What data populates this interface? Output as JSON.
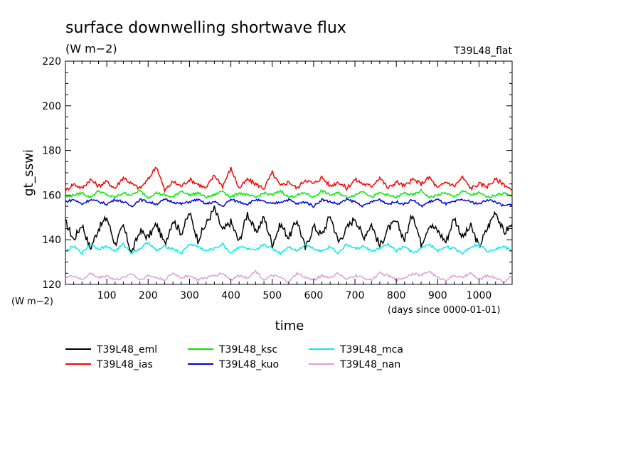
{
  "chart_data": {
    "type": "line",
    "title": "surface downwelling shortwave flux",
    "units": "(W m−2)",
    "experiment": "T39L48_flat",
    "ylabel": "gt_sswi",
    "xlabel": "time",
    "x_units": "(days since 0000-01-01)",
    "y_units_label": "(W m−2)",
    "xlim": [
      0,
      1080
    ],
    "ylim": [
      120,
      220
    ],
    "x_ticks": [
      100,
      200,
      300,
      400,
      500,
      600,
      700,
      800,
      900,
      1000
    ],
    "y_ticks": [
      120,
      140,
      160,
      180,
      200,
      220
    ],
    "x": [
      0,
      20,
      40,
      60,
      80,
      100,
      120,
      140,
      160,
      180,
      200,
      220,
      240,
      260,
      280,
      300,
      320,
      340,
      360,
      380,
      400,
      420,
      440,
      460,
      480,
      500,
      520,
      540,
      560,
      580,
      600,
      620,
      640,
      660,
      680,
      700,
      720,
      740,
      760,
      780,
      800,
      820,
      840,
      860,
      880,
      900,
      920,
      940,
      960,
      980,
      1000,
      1020,
      1040,
      1060,
      1080
    ],
    "series": [
      {
        "name": "T39L48_eml",
        "color": "#000000",
        "values": [
          148,
          140,
          147,
          136,
          145,
          150,
          138,
          146,
          134,
          144,
          141,
          147,
          138,
          149,
          143,
          152,
          140,
          147,
          154,
          144,
          148,
          139,
          152,
          143,
          150,
          138,
          147,
          141,
          149,
          136,
          146,
          142,
          151,
          139,
          145,
          150,
          141,
          147,
          137,
          145,
          148,
          140,
          152,
          138,
          147,
          144,
          139,
          150,
          141,
          146,
          137,
          145,
          153,
          143,
          147
        ]
      },
      {
        "name": "T39L48_ias",
        "color": "#ff0000",
        "values": [
          162,
          165,
          163,
          167,
          164,
          166,
          163,
          168,
          165,
          163,
          167,
          173,
          162,
          166,
          164,
          167,
          165,
          163,
          169,
          164,
          172,
          163,
          167,
          165,
          163,
          170,
          164,
          166,
          163,
          167,
          165,
          168,
          164,
          166,
          163,
          167,
          165,
          164,
          168,
          163,
          166,
          164,
          167,
          165,
          168,
          163,
          166,
          164,
          168,
          163,
          165,
          164,
          167,
          165,
          162
        ]
      },
      {
        "name": "T39L48_ksc",
        "color": "#00ee00",
        "values": [
          159,
          160,
          161,
          159,
          162,
          160,
          159,
          161,
          160,
          162,
          159,
          161,
          160,
          159,
          162,
          160,
          161,
          159,
          160,
          162,
          159,
          161,
          160,
          159,
          161,
          160,
          162,
          159,
          160,
          161,
          159,
          162,
          160,
          161,
          159,
          160,
          162,
          159,
          161,
          160,
          159,
          161,
          160,
          162,
          159,
          160,
          161,
          159,
          162,
          160,
          161,
          159,
          160,
          161,
          159
        ]
      },
      {
        "name": "T39L48_kuo",
        "color": "#0000dd",
        "values": [
          157,
          158,
          156,
          158,
          157,
          156,
          158,
          157,
          155,
          158,
          157,
          156,
          158,
          157,
          156,
          157,
          158,
          156,
          157,
          155,
          158,
          157,
          156,
          158,
          157,
          156,
          157,
          158,
          156,
          157,
          155,
          158,
          157,
          156,
          158,
          157,
          155,
          157,
          158,
          156,
          157,
          156,
          158,
          155,
          157,
          158,
          156,
          157,
          158,
          157,
          156,
          158,
          157,
          155,
          156
        ]
      },
      {
        "name": "T39L48_mca",
        "color": "#00eeee",
        "values": [
          135,
          137,
          134,
          138,
          136,
          137,
          135,
          138,
          134,
          136,
          139,
          135,
          137,
          136,
          134,
          138,
          137,
          135,
          136,
          138,
          134,
          137,
          136,
          135,
          138,
          136,
          134,
          137,
          135,
          138,
          136,
          135,
          137,
          134,
          138,
          136,
          137,
          135,
          136,
          138,
          135,
          137,
          134,
          136,
          138,
          135,
          137,
          136,
          134,
          137,
          138,
          135,
          136,
          137,
          135
        ]
      },
      {
        "name": "T39L48_nan",
        "color": "#dda0dd",
        "values": [
          123,
          124,
          122,
          125,
          123,
          124,
          122,
          123,
          125,
          122,
          124,
          123,
          122,
          125,
          123,
          124,
          122,
          123,
          124,
          125,
          122,
          124,
          123,
          126,
          122,
          124,
          123,
          121,
          125,
          123,
          122,
          124,
          123,
          125,
          122,
          124,
          123,
          122,
          125,
          124,
          122,
          123,
          125,
          124,
          126,
          123,
          122,
          124,
          123,
          125,
          122,
          124,
          123,
          121,
          124
        ]
      }
    ],
    "legend_position": "bottom"
  }
}
